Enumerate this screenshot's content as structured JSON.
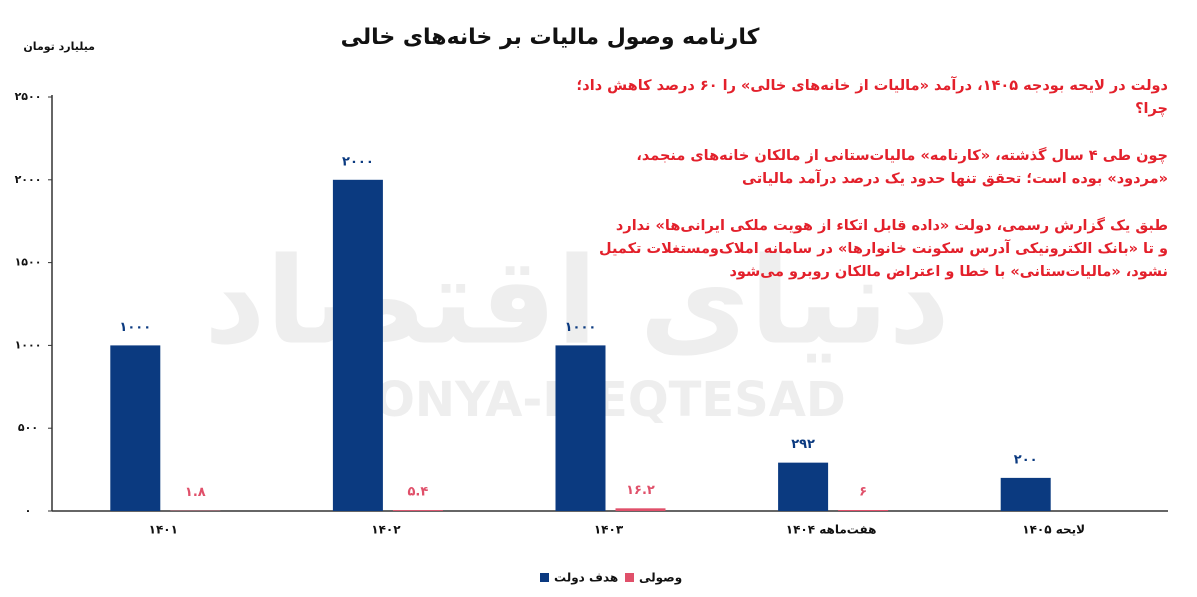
{
  "chart_data": {
    "type": "bar",
    "title": "کارنامه وصول مالیات بر خانه‌های خالی",
    "y_axis_label": "میلیارد تومان",
    "watermark": [
      "دنیای اقتصاد",
      "DONYA-E-EQTESAD"
    ],
    "categories": [
      "۱۴۰۱",
      "۱۴۰۲",
      "۱۴۰۳",
      "هفت‌ماهه ۱۴۰۴",
      "لایحه ۱۴۰۵"
    ],
    "series": [
      {
        "name": "هدف دولت",
        "color": "#0b3a80",
        "values": [
          1000,
          2000,
          1000,
          292,
          200
        ],
        "value_labels": [
          "۱۰۰۰",
          "۲۰۰۰",
          "۱۰۰۰",
          "۲۹۲",
          "۲۰۰"
        ]
      },
      {
        "name": "وصولی",
        "color": "#e0506a",
        "values": [
          1.8,
          5.4,
          16.2,
          6,
          null
        ],
        "value_labels": [
          "۱.۸",
          "۵.۴",
          "۱۶.۲",
          "۶",
          null
        ]
      }
    ],
    "ylim": [
      0,
      2500
    ],
    "yticks": [
      {
        "value": 0,
        "label": "۰"
      },
      {
        "value": 500,
        "label": "۵۰۰"
      },
      {
        "value": 1000,
        "label": "۱۰۰۰"
      },
      {
        "value": 1500,
        "label": "۱۵۰۰"
      },
      {
        "value": 2000,
        "label": "۲۰۰۰"
      },
      {
        "value": 2500,
        "label": "۲۵۰۰"
      }
    ],
    "grid": false,
    "annotations": [
      [
        "دولت در لایحه بودجه ۱۴۰۵، درآمد «مالیات از خانه‌های خالی» را ۶۰ درصد کاهش داد؛",
        "چرا؟"
      ],
      [
        "چون طی ۴ سال گذشته، «کارنامه» مالیات‌ستانی از مالکان خانه‌های منجمد،",
        "«مردود» بوده است؛ تحقق تنها حدود یک درصد درآمد مالیاتی"
      ],
      [
        "طبق یک گزارش رسمی، دولت «داده قابل اتکاء از هویت ملکی ایرانی‌ها» ندارد",
        "و تا «بانک الکترونیکی آدرس سکونت خانوارها» در سامانه املاک‌ومستغلات تکمیل",
        "نشود، «مالیات‌ستانی» با خطا و اعتراض مالکان روبرو می‌شود"
      ]
    ]
  }
}
